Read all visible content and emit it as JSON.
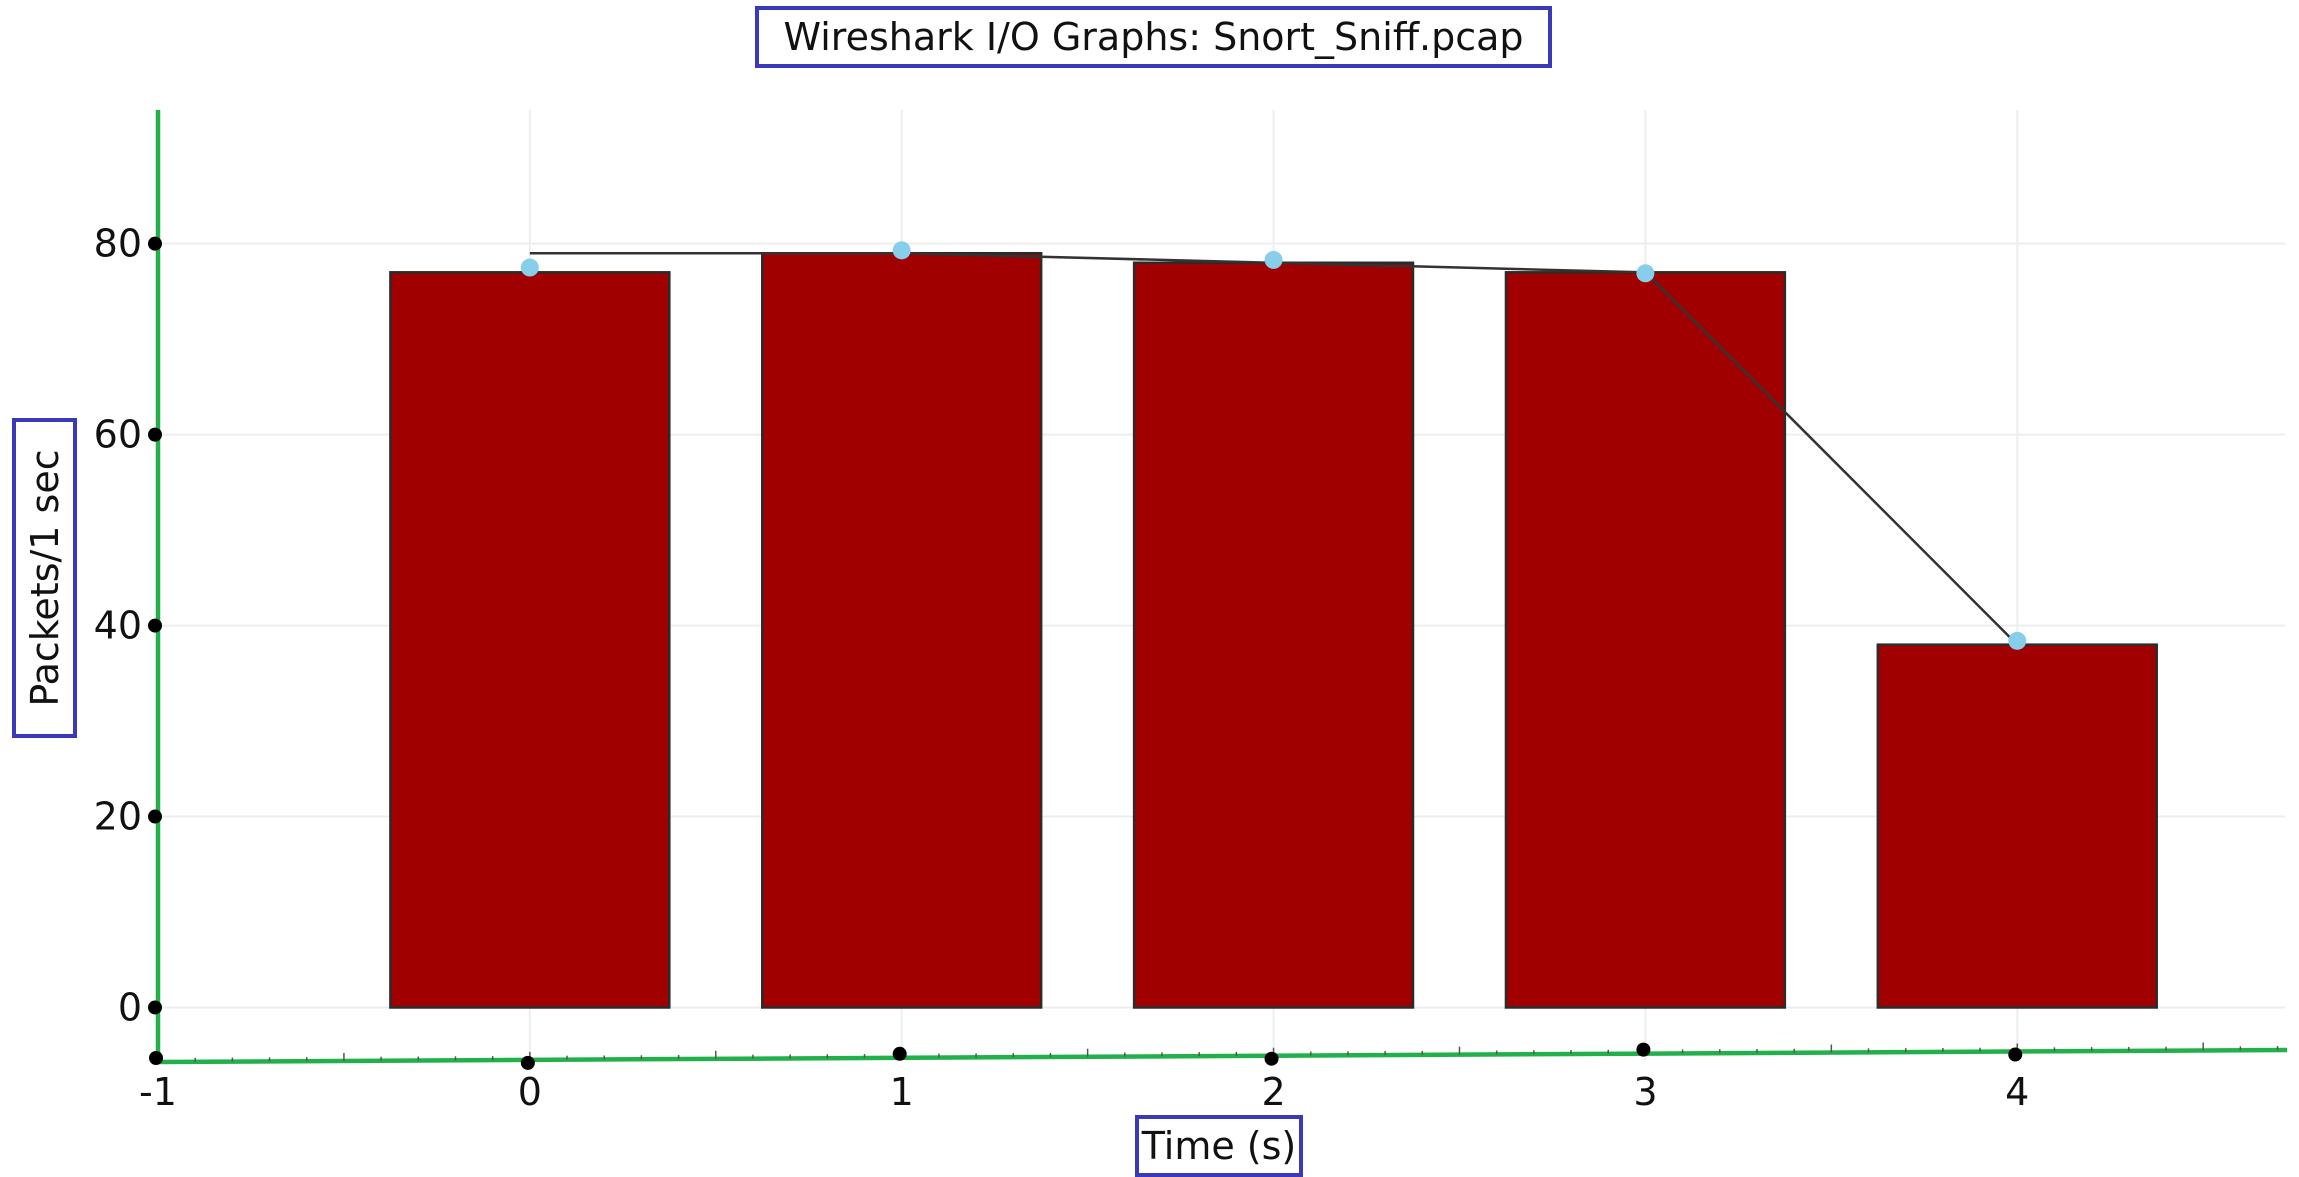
{
  "chart_data": {
    "type": "bar",
    "title": "Wireshark I/O Graphs: Snort_Sniff.pcap",
    "xlabel": "Time (s)",
    "ylabel": "Packets/1 sec",
    "x": [
      0,
      1,
      2,
      3,
      4
    ],
    "xticks": [
      -1,
      0,
      1,
      2,
      3,
      4
    ],
    "yticks": [
      0,
      20,
      40,
      60,
      80
    ],
    "xlim": [
      -1,
      4.72
    ],
    "ylim": [
      -5.5,
      94
    ],
    "grid": true,
    "series": [
      {
        "type": "bar",
        "values": [
          77,
          79,
          78,
          77,
          38
        ]
      },
      {
        "type": "line",
        "values": [
          79,
          79,
          78,
          77,
          38
        ]
      },
      {
        "type": "scatter",
        "values": [
          77.5,
          79.3,
          78.3,
          76.9,
          38.4
        ]
      }
    ],
    "colors": {
      "bar_fill": "#a00000",
      "bar_edge": "#2b2b2b",
      "line": "#333333",
      "points": "#87ceeb",
      "axis": "#22b04a",
      "label_border": "#3a3ab8",
      "grid": "#eeeeee"
    }
  }
}
